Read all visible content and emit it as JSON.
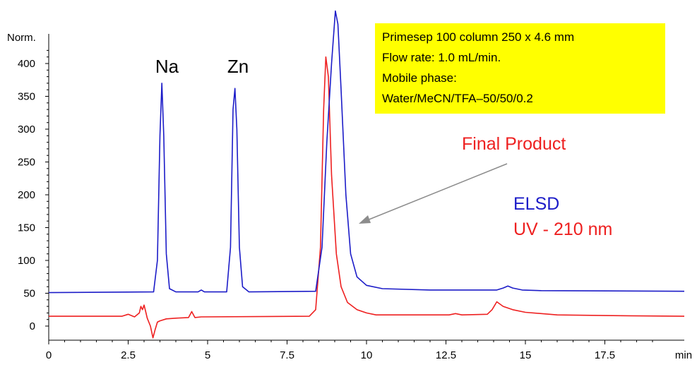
{
  "chart_data": {
    "type": "line",
    "xlabel": "min",
    "ylabel": "Norm.",
    "xlim": [
      0,
      20
    ],
    "ylim": [
      -10,
      430
    ],
    "x_ticks": [
      0,
      2.5,
      5,
      7.5,
      10,
      12.5,
      15,
      17.5
    ],
    "x_tick_labels": [
      "0",
      "2.5",
      "5",
      "7.5",
      "10",
      "12.5",
      "15",
      "17.5"
    ],
    "y_ticks": [
      0,
      50,
      100,
      150,
      200,
      250,
      300,
      350,
      400
    ],
    "y_tick_labels": [
      "0",
      "50",
      "100",
      "150",
      "200",
      "250",
      "300",
      "350",
      "400"
    ],
    "grid": false,
    "series": [
      {
        "name": "ELSD",
        "color": "#1c1cc8",
        "x": [
          0,
          3.3,
          3.42,
          3.5,
          3.56,
          3.62,
          3.7,
          3.8,
          4.0,
          4.7,
          4.8,
          4.9,
          5.6,
          5.72,
          5.8,
          5.86,
          5.92,
          6.0,
          6.1,
          6.3,
          8.4,
          8.6,
          8.75,
          8.9,
          9.02,
          9.1,
          9.2,
          9.35,
          9.5,
          9.7,
          10.0,
          10.5,
          12.0,
          14.1,
          14.3,
          14.45,
          14.6,
          14.9,
          15.5,
          20
        ],
        "values": [
          51,
          52,
          100,
          290,
          370,
          290,
          110,
          57,
          52,
          52,
          55,
          52,
          52,
          120,
          330,
          362,
          300,
          120,
          60,
          52,
          53,
          120,
          280,
          400,
          480,
          460,
          360,
          200,
          110,
          75,
          62,
          57,
          55,
          55,
          58,
          61,
          58,
          55,
          54,
          53
        ]
      },
      {
        "name": "UV - 210 nm",
        "color": "#ee2020",
        "x": [
          0,
          2.3,
          2.5,
          2.7,
          2.85,
          2.9,
          2.95,
          3.0,
          3.05,
          3.1,
          3.2,
          3.28,
          3.35,
          3.42,
          3.5,
          3.7,
          4.0,
          4.4,
          4.5,
          4.6,
          4.8,
          8.2,
          8.4,
          8.55,
          8.65,
          8.72,
          8.8,
          8.9,
          9.05,
          9.2,
          9.4,
          9.7,
          10.0,
          10.3,
          12.6,
          12.8,
          13.0,
          13.8,
          13.95,
          14.1,
          14.3,
          14.6,
          15.0,
          16.0,
          17.5,
          20
        ],
        "values": [
          15,
          15,
          18,
          14,
          20,
          30,
          25,
          32,
          22,
          12,
          0,
          -18,
          -5,
          6,
          8,
          11,
          12,
          13,
          22,
          13,
          14,
          15,
          25,
          120,
          330,
          410,
          380,
          230,
          110,
          60,
          36,
          25,
          20,
          17,
          17,
          19,
          17,
          18,
          25,
          37,
          30,
          25,
          21,
          17,
          16,
          15
        ]
      }
    ],
    "annotations": [
      {
        "text": "Na",
        "x": 3.5,
        "y": 375
      },
      {
        "text": "Zn",
        "x": 5.8,
        "y": 368
      },
      {
        "text": "Final Product",
        "color": "#ee2020"
      }
    ],
    "legend": {
      "placement": "right",
      "entries": [
        {
          "label": "ELSD",
          "color": "#1c1cc8"
        },
        {
          "label": "UV - 210 nm",
          "color": "#ee2020"
        }
      ]
    },
    "info_box": {
      "background": "#ffff00",
      "lines": [
        "Primesep 100 column 250 x 4.6 mm",
        "Flow rate: 1.0 mL/min.",
        "Mobile phase:",
        "Water/MeCN/TFA–50/50/0.2"
      ]
    }
  }
}
